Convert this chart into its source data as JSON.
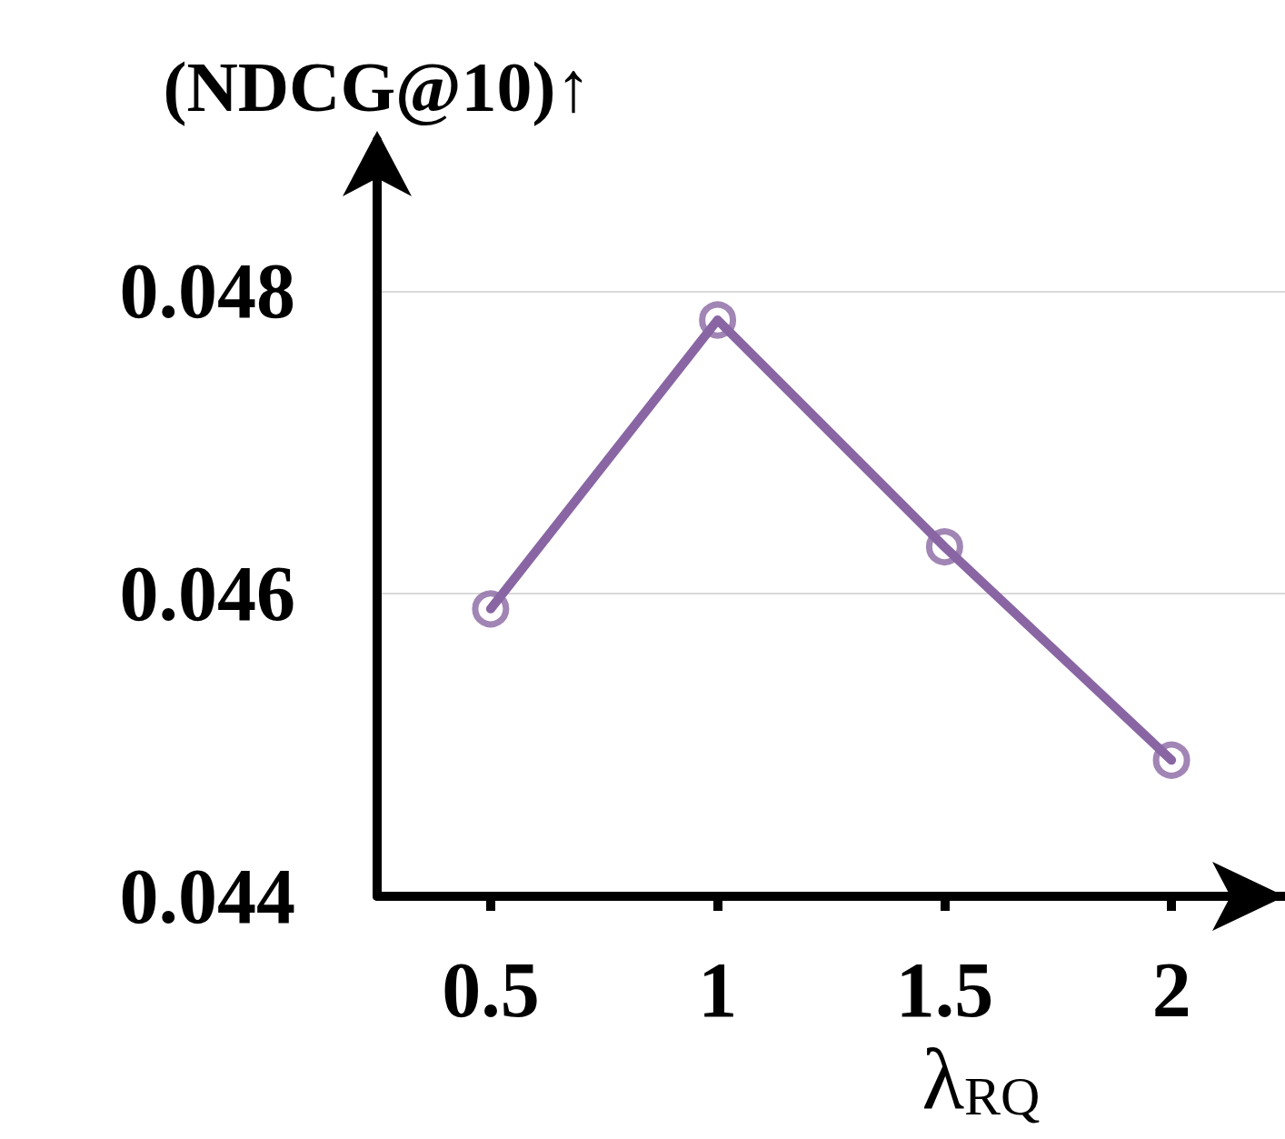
{
  "chart_data": {
    "type": "line",
    "ylabel": "(NDCG@10)↑",
    "xlabel": "λ$_{RQ}$",
    "categories": [
      "0.5",
      "1",
      "1.5",
      "2"
    ],
    "series": [
      {
        "color": "#8966a3",
        "values": [
          0.0459,
          0.04781,
          0.04631,
          0.0449
        ]
      }
    ],
    "ylim": [
      0.044,
      0.049
    ],
    "yticks": [
      0.044,
      0.046,
      0.048
    ],
    "grid": "y",
    "marker": "circle",
    "line_style": "solid"
  }
}
